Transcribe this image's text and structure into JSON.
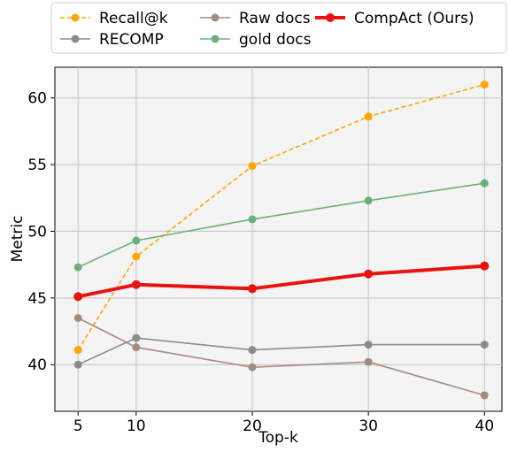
{
  "chart_data": {
    "type": "line",
    "xlabel": "Top-k",
    "ylabel": "Metric",
    "x": [
      5,
      10,
      20,
      30,
      40
    ],
    "x_ticks": [
      5,
      10,
      20,
      30,
      40
    ],
    "y_ticks": [
      40,
      45,
      50,
      55,
      60
    ],
    "xlim": [
      3,
      41.5
    ],
    "ylim": [
      36.5,
      62.3
    ],
    "grid": true,
    "legend_position": "top, above plot, 3 columns",
    "series": [
      {
        "name": "Recall@k",
        "color": "#ffa500",
        "style": "dashed",
        "marker": "circle",
        "values": [
          41.1,
          48.1,
          54.9,
          58.6,
          61.0
        ]
      },
      {
        "name": "RECOMP",
        "color": "#8c8c8c",
        "style": "solid",
        "marker": "circle",
        "values": [
          40.0,
          42.0,
          41.1,
          41.5,
          41.5
        ]
      },
      {
        "name": "Raw docs",
        "color": "#a58c7d",
        "style": "solid",
        "marker": "circle",
        "values": [
          43.5,
          41.3,
          39.8,
          40.2,
          37.7
        ]
      },
      {
        "name": "gold docs",
        "color": "#6ab07a",
        "style": "solid",
        "marker": "circle",
        "values": [
          47.3,
          49.3,
          50.9,
          52.3,
          53.6
        ]
      },
      {
        "name": "CompAct (Ours)",
        "color": "#e8140f",
        "style": "bold",
        "marker": "circle",
        "values": [
          45.1,
          46.0,
          45.7,
          46.8,
          47.4
        ]
      }
    ]
  }
}
